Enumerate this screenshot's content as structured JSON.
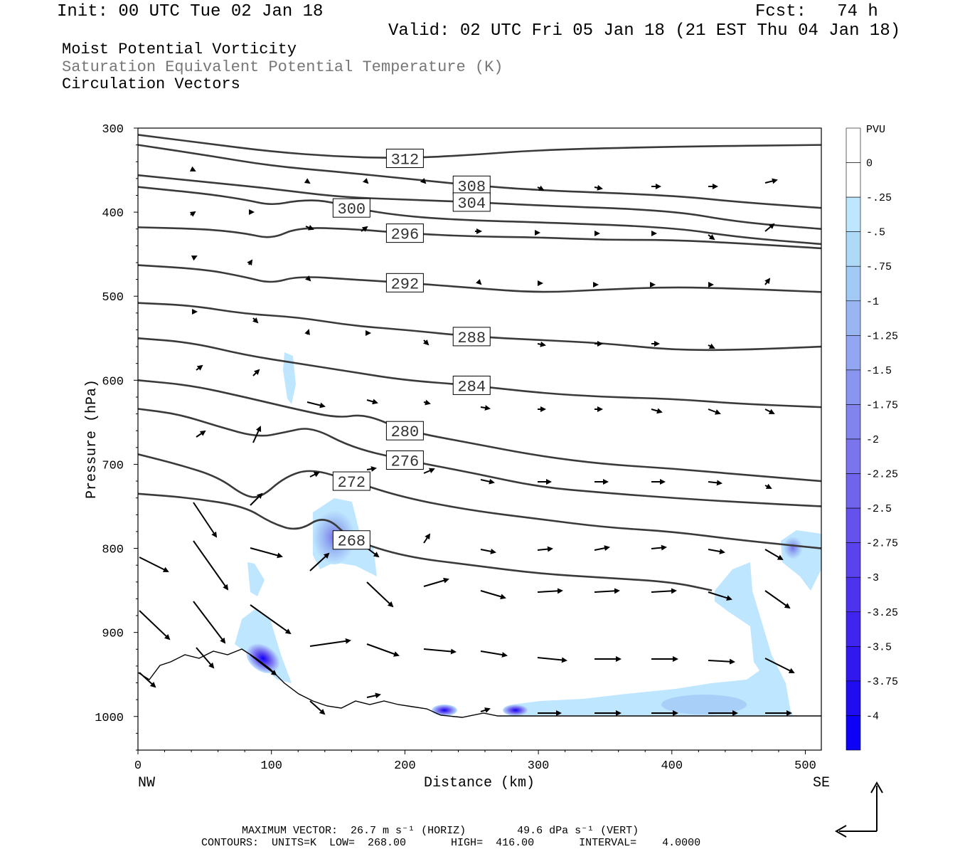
{
  "header": {
    "init": "Init: 00 UTC Tue 02 Jan 18",
    "fcst": "Fcst:   74 h",
    "valid": "Valid: 02 UTC Fri 05 Jan 18 (21 EST Thu 04 Jan 18)",
    "field1": "Moist Potential Vorticity",
    "field2": "Saturation Equivalent Potential Temperature (K)",
    "field3": "Circulation Vectors"
  },
  "footer": {
    "max_vector": "MAXIMUM VECTOR:  26.7 m s⁻¹ (HORIZ)        49.6 dPa s⁻¹ (VERT)",
    "contours": "CONTOURS:  UNITS=K  LOW=  268.00       HIGH=  416.00       INTERVAL=    4.0000"
  },
  "colors": {
    "contour": "#3a3a3a",
    "vector": "#000000",
    "colorbar": [
      "#ffffff",
      "#ffffff",
      "#bfe6ff",
      "#aedaf8",
      "#a3c9f5",
      "#99b6f3",
      "#92a6f1",
      "#8a95ef",
      "#8284ee",
      "#7a74ed",
      "#7063ec",
      "#6552ec",
      "#5a43ec",
      "#4d34ec",
      "#3f25ed",
      "#3018ef",
      "#1f0cf1",
      "#0d02f5"
    ]
  },
  "chart_data": {
    "type": "contour",
    "xlabel": "Distance (km)",
    "ylabel": "Pressure (hPa)",
    "xlim": [
      0,
      512
    ],
    "ylim": [
      1040,
      300
    ],
    "x_ticks": [
      "0",
      "100",
      "200",
      "300",
      "400",
      "500"
    ],
    "y_ticks": [
      "300",
      "400",
      "500",
      "600",
      "700",
      "800",
      "900",
      "1000"
    ],
    "x_end_labels": {
      "left": "NW",
      "right": "SE"
    },
    "colorbar": {
      "unit": "PVU",
      "labels": [
        "0",
        "-.25",
        "-.5",
        "-.75",
        "-1",
        "-1.25",
        "-1.5",
        "-1.75",
        "-2",
        "-2.25",
        "-2.5",
        "-2.75",
        "-3",
        "-3.25",
        "-3.5",
        "-3.75",
        "-4"
      ]
    },
    "isentropes": [
      {
        "value": 312,
        "points": [
          [
            0,
            308
          ],
          [
            50,
            318
          ],
          [
            100,
            328
          ],
          [
            150,
            334
          ],
          [
            200,
            336
          ],
          [
            250,
            332
          ],
          [
            300,
            326
          ],
          [
            400,
            322
          ],
          [
            512,
            320
          ]
        ]
      },
      {
        "value": 308,
        "points": [
          [
            0,
            320
          ],
          [
            50,
            332
          ],
          [
            100,
            345
          ],
          [
            150,
            352
          ],
          [
            200,
            360
          ],
          [
            250,
            368
          ],
          [
            300,
            374
          ],
          [
            400,
            380
          ],
          [
            450,
            388
          ],
          [
            512,
            395
          ]
        ]
      },
      {
        "value": 304,
        "points": [
          [
            0,
            356
          ],
          [
            50,
            364
          ],
          [
            100,
            372
          ],
          [
            150,
            382
          ],
          [
            200,
            385
          ],
          [
            250,
            388
          ],
          [
            300,
            392
          ],
          [
            400,
            398
          ],
          [
            450,
            412
          ],
          [
            512,
            420
          ]
        ]
      },
      {
        "value": 300,
        "points": [
          [
            0,
            370
          ],
          [
            50,
            378
          ],
          [
            80,
            385
          ],
          [
            100,
            392
          ],
          [
            120,
            386
          ],
          [
            140,
            386
          ],
          [
            160,
            395
          ],
          [
            200,
            405
          ],
          [
            250,
            410
          ],
          [
            300,
            412
          ],
          [
            400,
            418
          ],
          [
            450,
            430
          ],
          [
            512,
            438
          ]
        ]
      },
      {
        "value": 296,
        "points": [
          [
            0,
            418
          ],
          [
            50,
            420
          ],
          [
            80,
            425
          ],
          [
            100,
            432
          ],
          [
            120,
            418
          ],
          [
            160,
            420
          ],
          [
            200,
            425
          ],
          [
            250,
            429
          ],
          [
            300,
            430
          ],
          [
            350,
            433
          ],
          [
            400,
            433
          ],
          [
            450,
            437
          ],
          [
            512,
            443
          ]
        ]
      },
      {
        "value": 292,
        "points": [
          [
            0,
            463
          ],
          [
            50,
            468
          ],
          [
            80,
            477
          ],
          [
            100,
            485
          ],
          [
            120,
            476
          ],
          [
            160,
            480
          ],
          [
            200,
            484
          ],
          [
            250,
            490
          ],
          [
            300,
            496
          ],
          [
            350,
            492
          ],
          [
            400,
            489
          ],
          [
            450,
            491
          ],
          [
            512,
            495
          ]
        ]
      },
      {
        "value": 288,
        "points": [
          [
            0,
            508
          ],
          [
            40,
            511
          ],
          [
            80,
            521
          ],
          [
            120,
            525
          ],
          [
            160,
            535
          ],
          [
            200,
            540
          ],
          [
            250,
            548
          ],
          [
            300,
            552
          ],
          [
            350,
            556
          ],
          [
            400,
            564
          ],
          [
            450,
            564
          ],
          [
            512,
            560
          ]
        ]
      },
      {
        "value": 284,
        "points": [
          [
            0,
            550
          ],
          [
            40,
            555
          ],
          [
            80,
            570
          ],
          [
            120,
            580
          ],
          [
            160,
            590
          ],
          [
            200,
            600
          ],
          [
            250,
            606
          ],
          [
            300,
            615
          ],
          [
            350,
            620
          ],
          [
            400,
            622
          ],
          [
            450,
            628
          ],
          [
            512,
            632
          ]
        ]
      },
      {
        "value": 280,
        "points": [
          [
            0,
            600
          ],
          [
            40,
            606
          ],
          [
            80,
            620
          ],
          [
            120,
            635
          ],
          [
            150,
            645
          ],
          [
            170,
            640
          ],
          [
            200,
            660
          ],
          [
            250,
            675
          ],
          [
            300,
            690
          ],
          [
            350,
            700
          ],
          [
            400,
            705
          ],
          [
            450,
            712
          ],
          [
            512,
            720
          ]
        ]
      },
      {
        "value": 276,
        "points": [
          [
            0,
            634
          ],
          [
            30,
            640
          ],
          [
            60,
            655
          ],
          [
            90,
            668
          ],
          [
            110,
            662
          ],
          [
            130,
            655
          ],
          [
            160,
            680
          ],
          [
            200,
            695
          ],
          [
            250,
            710
          ],
          [
            300,
            727
          ],
          [
            350,
            734
          ],
          [
            400,
            740
          ],
          [
            450,
            745
          ],
          [
            512,
            750
          ]
        ]
      },
      {
        "value": 272,
        "points": [
          [
            0,
            688
          ],
          [
            30,
            700
          ],
          [
            60,
            715
          ],
          [
            80,
            738
          ],
          [
            92,
            740
          ],
          [
            110,
            715
          ],
          [
            130,
            705
          ],
          [
            160,
            720
          ],
          [
            200,
            740
          ],
          [
            250,
            755
          ],
          [
            300,
            765
          ],
          [
            350,
            775
          ],
          [
            400,
            780
          ],
          [
            450,
            790
          ],
          [
            512,
            800
          ]
        ]
      },
      {
        "value": 268,
        "points": [
          [
            0,
            735
          ],
          [
            40,
            740
          ],
          [
            80,
            750
          ],
          [
            100,
            770
          ],
          [
            120,
            780
          ],
          [
            140,
            760
          ],
          [
            160,
            790
          ],
          [
            200,
            810
          ],
          [
            250,
            820
          ],
          [
            300,
            830
          ],
          [
            350,
            835
          ],
          [
            400,
            840
          ],
          [
            430,
            850
          ]
        ]
      }
    ],
    "pv_extremes_pvu": [
      {
        "location": "near 150 km, 780 hPa",
        "min": -2.0
      },
      {
        "location": "near 90 km, 950 hPa",
        "min": -3.75
      },
      {
        "location": "near 230 km, 995 hPa",
        "min": -4.0
      },
      {
        "location": "near 280 km, 995 hPa",
        "min": -4.0
      },
      {
        "location": "near 490 km, 800 hPa",
        "min": -1.5
      }
    ]
  }
}
